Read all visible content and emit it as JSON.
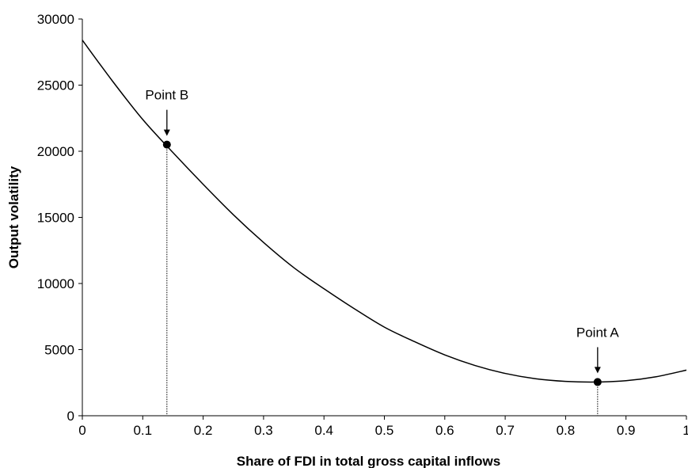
{
  "chart_data": {
    "type": "line",
    "title": "",
    "xlabel": "Share of FDI in total gross capital inflows",
    "ylabel": "Output volatility",
    "xlim": [
      0,
      1
    ],
    "ylim": [
      0,
      30000
    ],
    "x_ticks": [
      0,
      0.1,
      0.2,
      0.3,
      0.4,
      0.5,
      0.6,
      0.7,
      0.8,
      0.9,
      1
    ],
    "x_tick_labels": [
      "0",
      "0.1",
      "0.2",
      "0.3",
      "0.4",
      "0.5",
      "0.6",
      "0.7",
      "0.8",
      "0.9",
      "1"
    ],
    "y_ticks": [
      0,
      5000,
      10000,
      15000,
      20000,
      25000,
      30000
    ],
    "y_tick_labels": [
      "0",
      "5000",
      "10000",
      "15000",
      "20000",
      "25000",
      "30000"
    ],
    "grid": false,
    "legend": "none",
    "series": [
      {
        "x": [
          0,
          0.05,
          0.1,
          0.15,
          0.2,
          0.25,
          0.3,
          0.35,
          0.4,
          0.45,
          0.5,
          0.55,
          0.6,
          0.65,
          0.7,
          0.75,
          0.8,
          0.85,
          0.9,
          0.95,
          1
        ],
        "values": [
          28400,
          25300,
          22400,
          19900,
          17500,
          15200,
          13100,
          11200,
          9600,
          8100,
          6700,
          5600,
          4600,
          3800,
          3200,
          2800,
          2600,
          2550,
          2650,
          2950,
          3450
        ]
      }
    ],
    "points": [
      {
        "label": "Point B",
        "x": 0.14,
        "y": 20500
      },
      {
        "label": "Point A",
        "x": 0.853,
        "y": 2550
      }
    ]
  }
}
